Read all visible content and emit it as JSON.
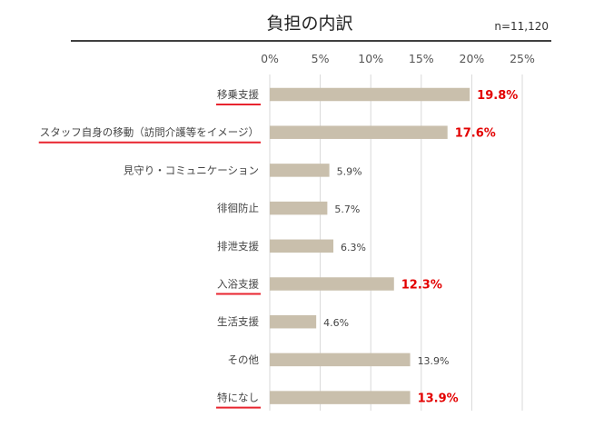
{
  "chart_data": {
    "type": "bar",
    "orientation": "horizontal",
    "title": "負担の内訳",
    "subtitle": "n=11,120",
    "x_ticks": [
      "0%",
      "5%",
      "10%",
      "15%",
      "20%",
      "25%"
    ],
    "xlim": [
      0,
      25
    ],
    "grid": true,
    "categories": [
      "移乗支援",
      "スタッフ自身の移動（訪問介護等をイメージ）",
      "見守り・コミュニケーション",
      "徘徊防止",
      "排泄支援",
      "入浴支援",
      "生活支援",
      "その他",
      "特になし"
    ],
    "values": [
      19.8,
      17.6,
      5.9,
      5.7,
      6.3,
      12.3,
      4.6,
      13.9,
      13.9
    ],
    "value_labels": [
      "19.8%",
      "17.6%",
      "5.9%",
      "5.7%",
      "6.3%",
      "12.3%",
      "4.6%",
      "13.9%",
      "13.9%"
    ],
    "highlighted": [
      true,
      true,
      false,
      false,
      false,
      true,
      false,
      false,
      true
    ],
    "colors": {
      "bar": "#c9bfac",
      "highlight_text": "#e30000",
      "underline": "#e8242f",
      "grid": "#d9d9d9",
      "title_rule": "#000000"
    }
  }
}
